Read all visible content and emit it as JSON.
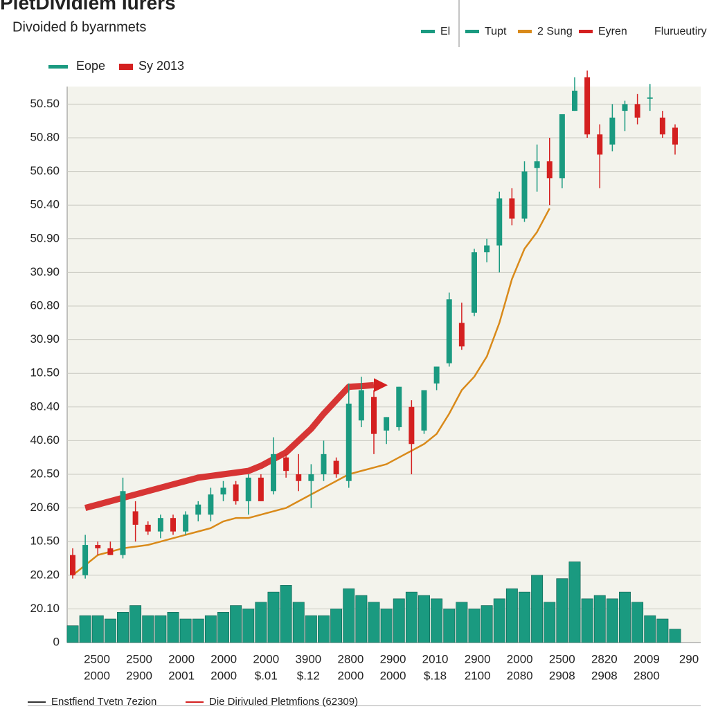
{
  "chart_data": {
    "type": "candlestick",
    "title": "PletDividiem Iurers",
    "subtitle": "Divoided ɓ byarnmets",
    "legend_top": [
      {
        "name": "El",
        "color": "#1a9a80"
      },
      {
        "name": "Tupt",
        "color": "#1a9a80"
      },
      {
        "name": "2 Sung",
        "color": "#d98a1a"
      },
      {
        "name": "Eyren",
        "color": "#d42020"
      },
      {
        "name": "Flurueutiry",
        "color": null
      }
    ],
    "legend_bottom": [
      {
        "name": "Enstfiend Tvetn 7ezion",
        "color": "#333333"
      },
      {
        "name": "Die Dirivuled Pletmfions (62309)",
        "color": "#d42020"
      }
    ],
    "x_tick_labels": [
      [
        "2500",
        "2000"
      ],
      [
        "2500",
        "2900"
      ],
      [
        "2000",
        "2001"
      ],
      [
        "2000",
        "2000"
      ],
      [
        "2000",
        "$.01"
      ],
      [
        "3900",
        "$.12"
      ],
      [
        "2800",
        "2000"
      ],
      [
        "2900",
        "2000"
      ],
      [
        "2010",
        "$.18"
      ],
      [
        "2900",
        "2100"
      ],
      [
        "2000",
        "2080"
      ],
      [
        "2500",
        "2908"
      ],
      [
        "2820",
        "2908"
      ],
      [
        "2009",
        "2800"
      ],
      [
        "290"
      ]
    ],
    "ylim": [
      0,
      17.2
    ],
    "yticks": [
      0,
      {
        "value": 1,
        "label": "20.10"
      },
      {
        "value": 2,
        "label": "20.20"
      },
      {
        "value": 3,
        "label": "10.50"
      },
      {
        "value": 4,
        "label": "20.60"
      },
      {
        "value": 5,
        "label": "20.50"
      },
      {
        "value": 6,
        "label": "40.60"
      },
      {
        "value": 7,
        "label": "80.40"
      },
      {
        "value": 8,
        "label": "10.50"
      },
      {
        "value": 9,
        "label": "30.90"
      },
      {
        "value": 10,
        "label": "60.80"
      },
      {
        "value": 11,
        "label": "30.90"
      },
      {
        "value": 12,
        "label": "50.90"
      },
      {
        "value": 13,
        "label": "50.40"
      },
      {
        "value": 14,
        "label": "50.60"
      },
      {
        "value": 15,
        "label": "50.80"
      },
      {
        "value": 16,
        "label": "50.50"
      }
    ],
    "grid": true,
    "up_color": "#1a9a80",
    "down_color": "#d42020",
    "candles": {
      "name": "Eope",
      "open": [
        2.6,
        2.0,
        2.9,
        2.8,
        2.6,
        3.9,
        3.5,
        3.3,
        3.7,
        3.3,
        3.8,
        3.8,
        4.4,
        4.7,
        4.2,
        4.9,
        4.5,
        5.5,
        5.0,
        4.8,
        5.0,
        5.4,
        4.8,
        6.6,
        7.3,
        6.3,
        6.4,
        7.0,
        6.3,
        7.7,
        8.3,
        9.5,
        9.8,
        11.6,
        11.8,
        13.2,
        12.6,
        14.1,
        14.3,
        13.8,
        15.8,
        16.8,
        15.1,
        14.8,
        15.8,
        16.0,
        16.2,
        15.6,
        15.3
      ],
      "high": [
        2.8,
        3.2,
        3.0,
        3.0,
        4.9,
        4.2,
        3.6,
        3.8,
        3.8,
        3.9,
        4.2,
        4.6,
        4.8,
        4.8,
        5.0,
        5.0,
        6.1,
        5.6,
        5.6,
        5.3,
        6.0,
        5.5,
        7.7,
        7.9,
        7.5,
        6.7,
        7.6,
        7.2,
        7.5,
        8.2,
        10.4,
        10.1,
        11.7,
        12.0,
        13.4,
        13.5,
        14.3,
        14.8,
        15.0,
        15.7,
        16.8,
        17.0,
        15.4,
        16.0,
        16.1,
        16.3,
        16.6,
        15.8,
        15.4
      ],
      "low": [
        1.9,
        1.9,
        2.6,
        2.6,
        2.5,
        3.0,
        3.2,
        3.1,
        3.2,
        3.2,
        3.6,
        3.6,
        4.2,
        4.1,
        3.8,
        4.2,
        4.4,
        4.9,
        4.5,
        4.0,
        4.8,
        4.9,
        4.6,
        6.4,
        5.6,
        5.9,
        6.3,
        5.0,
        6.2,
        7.5,
        8.2,
        8.7,
        9.7,
        11.3,
        11.0,
        12.4,
        12.5,
        13.4,
        13.0,
        13.5,
        15.8,
        15.0,
        13.5,
        14.6,
        15.2,
        15.4,
        15.8,
        15.0,
        14.5
      ],
      "close": [
        2.0,
        2.9,
        2.8,
        2.6,
        4.5,
        3.5,
        3.3,
        3.7,
        3.3,
        3.8,
        4.1,
        4.4,
        4.6,
        4.2,
        4.9,
        4.2,
        5.6,
        5.1,
        4.8,
        5.0,
        5.6,
        5.0,
        7.1,
        7.5,
        6.2,
        6.7,
        7.6,
        5.9,
        7.5,
        8.2,
        10.2,
        8.8,
        11.6,
        11.8,
        13.2,
        12.6,
        14.0,
        14.3,
        13.8,
        15.7,
        16.4,
        15.1,
        14.5,
        15.6,
        16.0,
        15.6,
        16.2,
        15.1,
        14.8
      ]
    },
    "volume": {
      "color": "#1a9a80",
      "values": [
        0.5,
        0.8,
        0.8,
        0.7,
        0.9,
        1.1,
        0.8,
        0.8,
        0.9,
        0.7,
        0.7,
        0.8,
        0.9,
        1.1,
        1.0,
        1.2,
        1.5,
        1.7,
        1.2,
        0.8,
        0.8,
        1.0,
        1.6,
        1.4,
        1.2,
        1.0,
        1.3,
        1.5,
        1.4,
        1.3,
        1.0,
        1.2,
        1.0,
        1.1,
        1.3,
        1.6,
        1.5,
        2.0,
        1.2,
        1.9,
        2.4,
        1.3,
        1.4,
        1.3,
        1.5,
        1.2,
        0.8,
        0.7,
        0.4
      ]
    },
    "series": [
      {
        "name": "2 Sung",
        "color": "#d98a1a",
        "values": [
          2.0,
          2.3,
          2.6,
          2.7,
          2.8,
          2.85,
          2.9,
          3.0,
          3.1,
          3.2,
          3.3,
          3.4,
          3.6,
          3.7,
          3.7,
          3.8,
          3.9,
          4.0,
          4.2,
          4.4,
          4.6,
          4.8,
          5.0,
          5.1,
          5.2,
          5.3,
          5.5,
          5.7,
          5.9,
          6.2,
          6.8,
          7.5,
          7.9,
          8.5,
          9.5,
          10.8,
          11.7,
          12.2,
          12.9,
          null,
          null,
          null,
          null,
          null,
          null,
          null,
          null,
          null,
          null
        ]
      },
      {
        "name": "Sy 2013",
        "color": "#d42020",
        "values": [
          null,
          4.0,
          4.1,
          4.2,
          4.3,
          4.4,
          4.5,
          4.6,
          4.7,
          4.8,
          4.9,
          4.95,
          5.0,
          5.05,
          5.1,
          5.25,
          5.45,
          5.65,
          6.0,
          6.35,
          6.8,
          7.2,
          7.6,
          7.62,
          7.65,
          null,
          null,
          null,
          null,
          null,
          null,
          null,
          null,
          null,
          null,
          null,
          null,
          null,
          null,
          null,
          null,
          null,
          null,
          null,
          null,
          null,
          null,
          null,
          null
        ]
      }
    ]
  }
}
